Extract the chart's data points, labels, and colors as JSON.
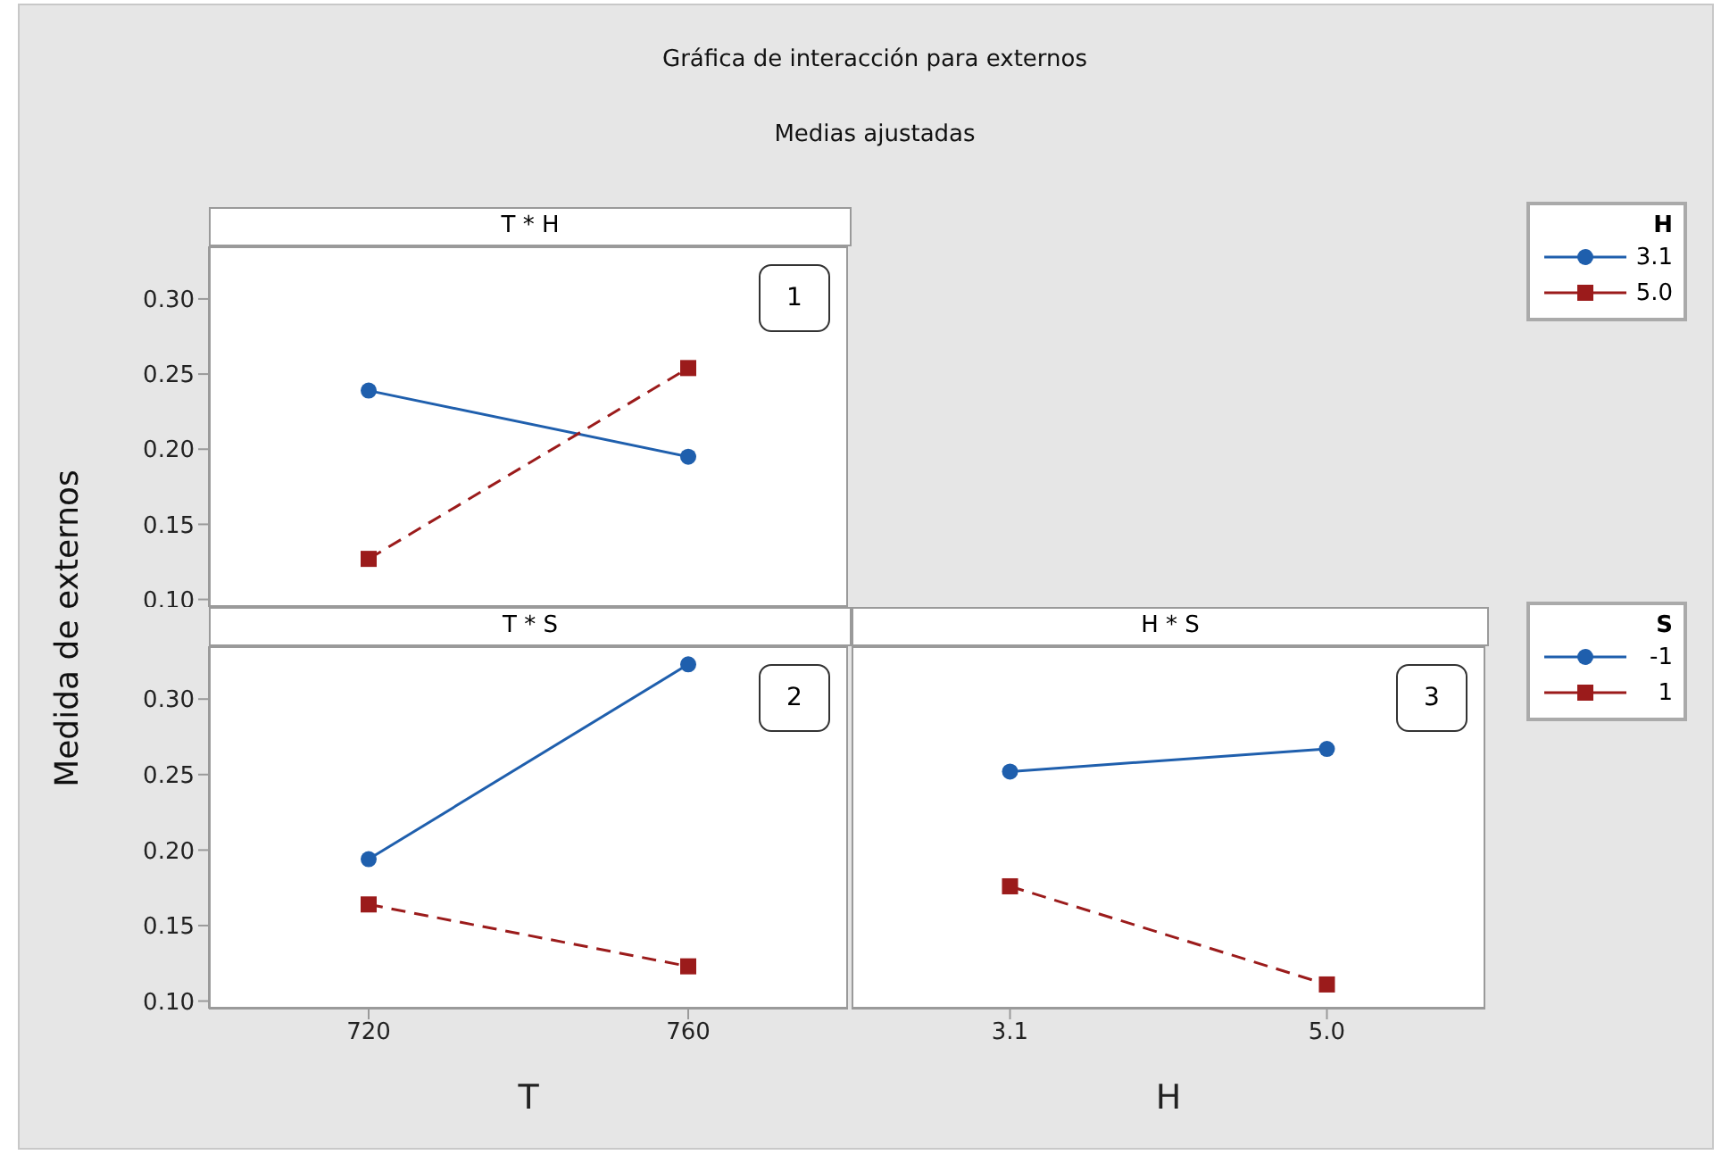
{
  "chart_data": [
    {
      "type": "line",
      "title": "T * H",
      "annotations": [
        "Gráfica de interacción para externos",
        "Medias ajustadas",
        "1"
      ],
      "ylabel": "Medida de externos",
      "legend_title": "H",
      "legend": "right",
      "categories": [
        "720",
        "760"
      ],
      "ylim": [
        0.095,
        0.335
      ],
      "yticks": [
        {
          "value": 0.1,
          "label": "0.10"
        },
        0.15,
        {
          "value": 0.2,
          "label": "0.20"
        },
        0.25,
        {
          "value": 0.3,
          "label": "0.30"
        }
      ],
      "tick_labels": "y",
      "series": [
        {
          "name": "3.1",
          "color": "#1f5fad",
          "marker": "circle",
          "line_style": "solid",
          "values": [
            0.239,
            0.195
          ]
        },
        {
          "name": "5.0",
          "color": "#9b1b1b",
          "marker": "square",
          "line_style": "dashed",
          "values": [
            0.127,
            0.254
          ]
        }
      ]
    },
    {
      "type": "line",
      "title": "T * S",
      "annotations": [
        "2"
      ],
      "xlabel": "T",
      "categories": [
        "720",
        "760"
      ],
      "ylim": [
        0.095,
        0.335
      ],
      "yticks": [
        {
          "value": 0.1,
          "label": "0.10"
        },
        0.15,
        {
          "value": 0.2,
          "label": "0.20"
        },
        0.25,
        {
          "value": 0.3,
          "label": "0.30"
        }
      ],
      "series": [
        {
          "color": "#1f5fad",
          "marker": "circle",
          "line_style": "solid",
          "values": [
            0.194,
            0.323
          ]
        },
        {
          "color": "#9b1b1b",
          "marker": "square",
          "line_style": "dashed",
          "values": [
            0.164,
            0.123
          ]
        }
      ]
    },
    {
      "type": "line",
      "title": "H * S",
      "annotations": [
        "3"
      ],
      "xlabel": "H",
      "legend_title": "S",
      "legend": "right",
      "categories": [
        "3.1",
        "5.0"
      ],
      "ylim": [
        0.095,
        0.335
      ],
      "yticks": [
        0.1,
        0.15,
        0.2,
        0.25,
        0.3
      ],
      "tick_labels": "x",
      "series": [
        {
          "name": "-1",
          "color": "#1f5fad",
          "marker": "circle",
          "line_style": "solid",
          "values": [
            0.252,
            0.267
          ]
        },
        {
          "name": "1",
          "color": "#9b1b1b",
          "marker": "square",
          "line_style": "dashed",
          "values": [
            0.176,
            0.111
          ]
        }
      ]
    }
  ]
}
